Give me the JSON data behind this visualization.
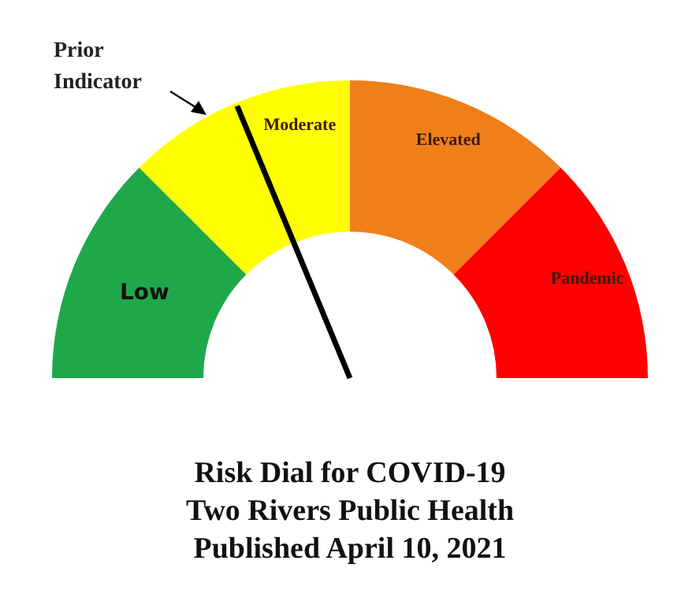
{
  "chart_data": {
    "type": "donut",
    "categories": [
      "Low",
      "Moderate",
      "Elevated",
      "Pandemic"
    ],
    "values": [
      25,
      25,
      25,
      25
    ],
    "colors": [
      "#1fa84a",
      "#ffff00",
      "#f07f1a",
      "#ff0000"
    ],
    "needle": "Moderate",
    "title": "Risk Dial for COVID-19",
    "subtitle": "Two Rivers Public Health",
    "annotations": [
      "Published April 10, 2021",
      "Prior Indicator"
    ]
  }
}
